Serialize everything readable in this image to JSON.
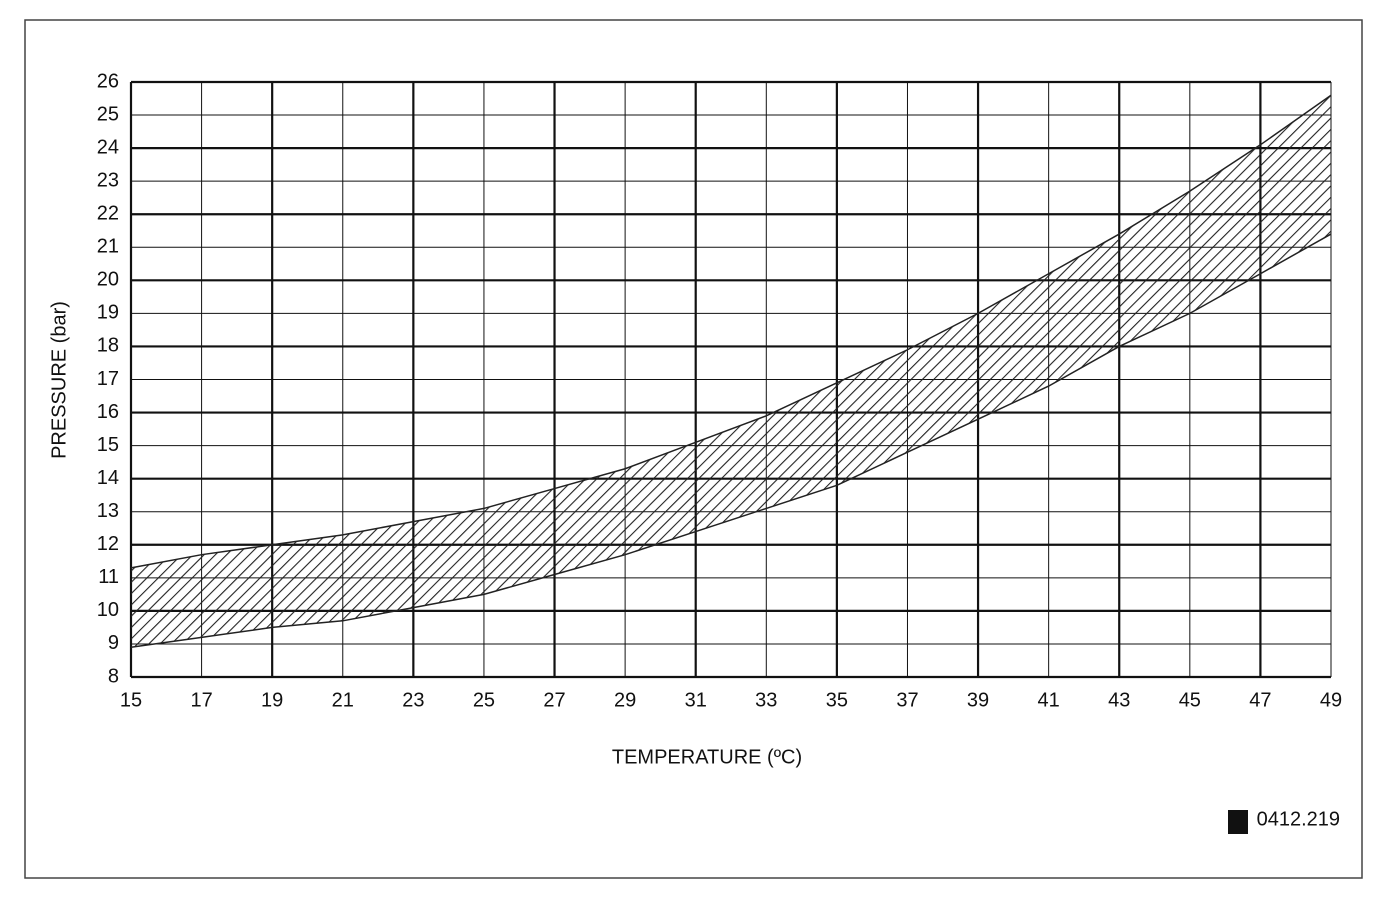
{
  "chart_data": {
    "type": "band",
    "xlabel": "TEMPERATURE (ºC)",
    "ylabel": "PRESSURE (bar)",
    "annotation": "0412.219",
    "x": [
      15,
      17,
      19,
      21,
      23,
      25,
      27,
      29,
      31,
      33,
      35,
      37,
      39,
      41,
      43,
      45,
      47,
      49
    ],
    "series": [
      {
        "color": "#222",
        "values": [
          11.3,
          11.7,
          12.0,
          12.3,
          12.7,
          13.1,
          13.7,
          14.3,
          15.1,
          15.9,
          16.9,
          17.9,
          19.0,
          20.2,
          21.4,
          22.7,
          24.1,
          25.6
        ]
      },
      {
        "color": "#222",
        "values": [
          8.9,
          9.2,
          9.5,
          9.7,
          10.1,
          10.5,
          11.1,
          11.7,
          12.4,
          13.1,
          13.8,
          14.8,
          15.8,
          16.8,
          18.0,
          19.0,
          20.2,
          21.4
        ]
      }
    ],
    "xlim": [
      15,
      49
    ],
    "ylim": [
      8,
      26
    ],
    "xticks": [
      15,
      17,
      19,
      21,
      23,
      25,
      27,
      29,
      31,
      33,
      35,
      37,
      39,
      41,
      43,
      45,
      47,
      49
    ],
    "yticks": [
      8,
      9,
      10,
      11,
      12,
      13,
      14,
      15,
      16,
      17,
      18,
      19,
      20,
      21,
      22,
      23,
      24,
      25,
      26
    ],
    "grid": true
  }
}
